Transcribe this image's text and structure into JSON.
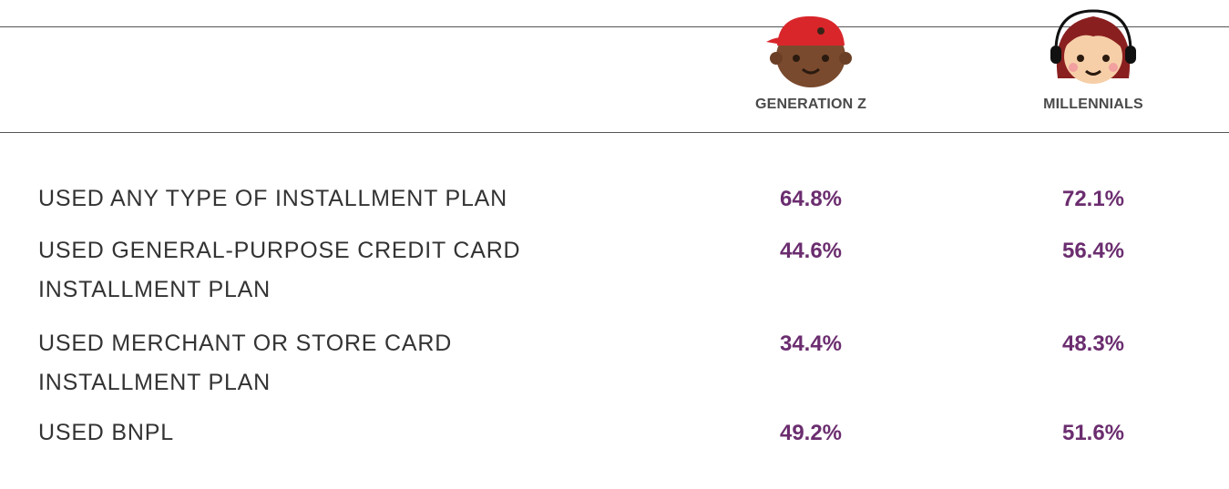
{
  "table": {
    "columns": [
      "GENERATION Z",
      "MILLENNIALS"
    ],
    "rows": [
      {
        "label": "USED ANY TYPE OF INSTALLMENT PLAN",
        "values": [
          "64.8%",
          "72.1%"
        ]
      },
      {
        "label": "USED GENERAL-PURPOSE CREDIT CARD INSTALLMENT PLAN",
        "values": [
          "44.6%",
          "56.4%"
        ]
      },
      {
        "label": "USED MERCHANT OR STORE CARD INSTALLMENT PLAN",
        "values": [
          "34.4%",
          "48.3%"
        ]
      },
      {
        "label": "USED BNPL",
        "values": [
          "49.2%",
          "51.6%"
        ]
      }
    ]
  }
}
